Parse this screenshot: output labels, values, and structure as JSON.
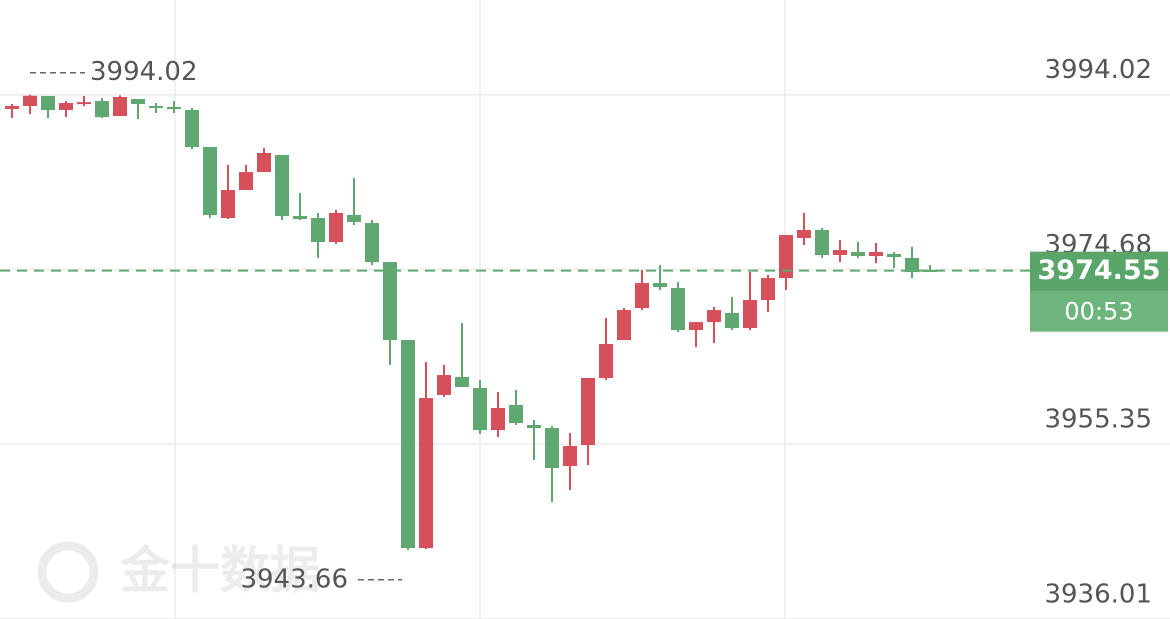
{
  "chart_data": {
    "type": "candlestick",
    "watermark": "金十数据",
    "ylim": [
      3936,
      4004.5
    ],
    "yticks": [
      3994.02,
      3974.68,
      3955.35,
      3936.01
    ],
    "grid": true,
    "up_color": "#d6505c",
    "down_color": "#5fa871",
    "max_label": 3994.02,
    "min_label": 3943.66,
    "current_price": 3974.55,
    "countdown": "00:53",
    "series": [
      {
        "open": [
          3992.44,
          3992.77,
          3993.88,
          3992.33,
          3993.1,
          3993.32,
          3991.66,
          3993.54,
          3992.77,
          3992.66,
          3992.33,
          3988.23,
          3980.37,
          3983.47,
          3985.46,
          3987.35,
          3980.6,
          3980.37,
          3977.72,
          3980.71,
          3979.82,
          3975.5,
          3966.87,
          3943.85,
          3960.79,
          3962.78,
          3961.56,
          3956.91,
          3959.68,
          3957.47,
          3957.13,
          3952.93,
          3955.25,
          3962.67,
          3966.87,
          3970.41,
          3973.18,
          3972.63,
          3967.98,
          3968.86,
          3969.86,
          3968.2,
          3971.3,
          3973.73,
          3978.16,
          3979.05,
          3976.28,
          3976.61,
          3976.17,
          3976.39,
          3975.95,
          3974.62
        ],
        "high": [
          3992.99,
          3994.02,
          3993.88,
          3993.32,
          3993.88,
          3993.65,
          3993.95,
          3993.54,
          3993.1,
          3993.32,
          3992.55,
          3988.23,
          3986.24,
          3986.24,
          3988.12,
          3987.35,
          3983.14,
          3980.93,
          3981.26,
          3984.8,
          3980.15,
          3975.5,
          3966.87,
          3964.44,
          3964.11,
          3968.75,
          3962.45,
          3961.12,
          3961.34,
          3958.02,
          3957.36,
          3956.58,
          3962.67,
          3969.31,
          3970.41,
          3974.62,
          3975.17,
          3973.29,
          3968.86,
          3970.52,
          3971.63,
          3974.4,
          3974.07,
          3978.49,
          3980.93,
          3979.27,
          3977.94,
          3977.72,
          3977.61,
          3976.61,
          3977.17,
          3975.17
        ],
        "low": [
          3991.44,
          3991.88,
          3991.44,
          3991.55,
          3992.77,
          3991.44,
          3991.66,
          3991.33,
          3992.0,
          3992.0,
          3988.01,
          3980.37,
          3980.26,
          3983.47,
          3985.46,
          3980.15,
          3980.15,
          3975.95,
          3977.5,
          3979.6,
          3975.17,
          3964.11,
          3943.66,
          3943.75,
          3960.57,
          3961.67,
          3956.47,
          3956.14,
          3957.47,
          3953.59,
          3948.94,
          3950.27,
          3953.04,
          3962.45,
          3966.87,
          3970.19,
          3972.41,
          3967.76,
          3966.1,
          3966.54,
          3967.98,
          3967.98,
          3969.97,
          3972.41,
          3977.39,
          3975.95,
          3975.5,
          3975.95,
          3975.39,
          3974.84,
          3973.73,
          3974.4
        ],
        "close": [
          3992.77,
          3993.9,
          3992.33,
          3993.1,
          3993.2,
          3991.55,
          3993.77,
          3992.99,
          3992.66,
          3992.55,
          3988.23,
          3980.71,
          3983.47,
          3985.46,
          3987.57,
          3980.6,
          3980.26,
          3977.72,
          3980.93,
          3979.93,
          3975.5,
          3966.87,
          3943.85,
          3960.45,
          3963.0,
          3961.67,
          3956.91,
          3959.35,
          3957.69,
          3957.13,
          3952.71,
          3955.14,
          3962.67,
          3966.43,
          3970.19,
          3973.18,
          3972.74,
          3967.98,
          3968.86,
          3970.19,
          3968.2,
          3971.3,
          3973.73,
          3978.49,
          3979.05,
          3976.28,
          3976.83,
          3976.17,
          3976.61,
          3976.06,
          3974.4,
          3974.55
        ]
      }
    ]
  }
}
